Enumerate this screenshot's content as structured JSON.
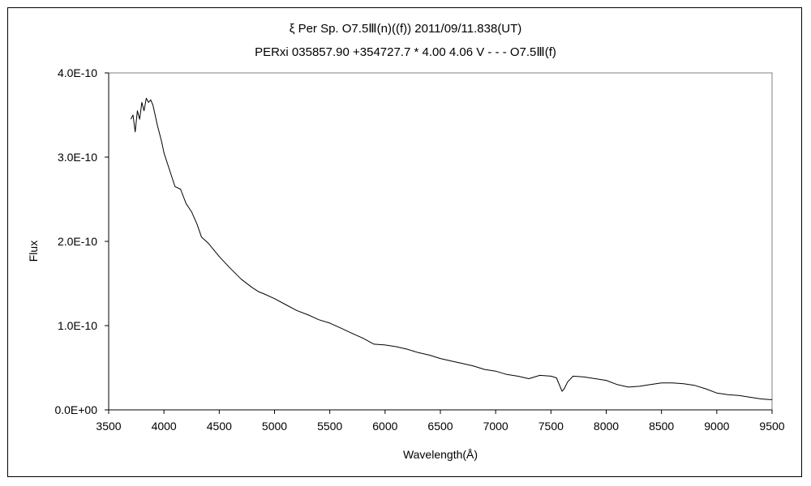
{
  "chart_data": {
    "type": "line",
    "title": "ξ Per Sp. O7.5Ⅲ(n)((f)) 2011/09/11.838(UT)",
    "subtitle": "PERxi 035857.90 +354727.7 * 4.00 4.06 V - - - O7.5Ⅲ(f)",
    "xlabel": "Wavelength(Å)",
    "ylabel": "Flux",
    "xlim": [
      3500,
      9500
    ],
    "ylim": [
      0,
      4e-10
    ],
    "xticks": [
      3500,
      4000,
      4500,
      5000,
      5500,
      6000,
      6500,
      7000,
      7500,
      8000,
      8500,
      9000,
      9500
    ],
    "xtick_labels": [
      "3500",
      "4000",
      "4500",
      "5000",
      "5500",
      "6000",
      "6500",
      "7000",
      "7500",
      "8000",
      "8500",
      "9000",
      "9500"
    ],
    "yticks": [
      0,
      1e-10,
      2e-10,
      3e-10,
      4e-10
    ],
    "ytick_labels": [
      "0.0E+00",
      "1.0E-10",
      "2.0E-10",
      "3.0E-10",
      "4.0E-10"
    ],
    "grid": false,
    "series": [
      {
        "x": [
          3700,
          3720,
          3740,
          3760,
          3780,
          3800,
          3820,
          3840,
          3860,
          3880,
          3900,
          3920,
          3940,
          3960,
          3980,
          4000,
          4050,
          4100,
          4150,
          4200,
          4250,
          4300,
          4340,
          4400,
          4500,
          4600,
          4700,
          4800,
          4860,
          4900,
          5000,
          5100,
          5200,
          5300,
          5400,
          5500,
          5600,
          5700,
          5800,
          5900,
          6000,
          6100,
          6200,
          6300,
          6400,
          6500,
          6600,
          6700,
          6800,
          6900,
          7000,
          7100,
          7200,
          7300,
          7400,
          7500,
          7550,
          7600,
          7620,
          7650,
          7700,
          7800,
          7900,
          8000,
          8100,
          8200,
          8300,
          8400,
          8500,
          8600,
          8700,
          8800,
          8900,
          9000,
          9100,
          9200,
          9300,
          9400,
          9500
        ],
        "y": [
          3.45e-10,
          3.5e-10,
          3.3e-10,
          3.55e-10,
          3.45e-10,
          3.65e-10,
          3.55e-10,
          3.7e-10,
          3.65e-10,
          3.68e-10,
          3.62e-10,
          3.5e-10,
          3.38e-10,
          3.28e-10,
          3.18e-10,
          3.05e-10,
          2.85e-10,
          2.65e-10,
          2.62e-10,
          2.45e-10,
          2.35e-10,
          2.2e-10,
          2.05e-10,
          1.98e-10,
          1.82e-10,
          1.68e-10,
          1.55e-10,
          1.45e-10,
          1.4e-10,
          1.38e-10,
          1.32e-10,
          1.25e-10,
          1.18e-10,
          1.13e-10,
          1.07e-10,
          1.03e-10,
          9.7e-11,
          9.1e-11,
          8.5e-11,
          7.8e-11,
          7.7e-11,
          7.5e-11,
          7.2e-11,
          6.8e-11,
          6.5e-11,
          6.1e-11,
          5.8e-11,
          5.5e-11,
          5.2e-11,
          4.8e-11,
          4.6e-11,
          4.2e-11,
          4e-11,
          3.7e-11,
          4.1e-11,
          4e-11,
          3.8e-11,
          2.2e-11,
          2.5e-11,
          3.3e-11,
          4e-11,
          3.9e-11,
          3.7e-11,
          3.5e-11,
          3e-11,
          2.7e-11,
          2.8e-11,
          3e-11,
          3.2e-11,
          3.2e-11,
          3.1e-11,
          2.9e-11,
          2.5e-11,
          2e-11,
          1.8e-11,
          1.7e-11,
          1.5e-11,
          1.3e-11,
          1.2e-11
        ]
      }
    ]
  }
}
